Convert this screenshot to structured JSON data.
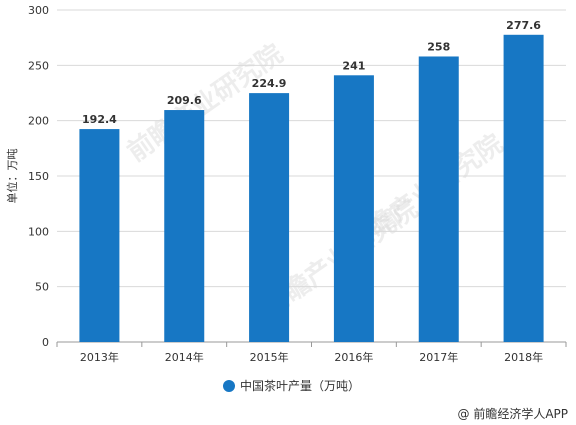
{
  "chart_data": {
    "type": "bar",
    "categories": [
      "2013年",
      "2014年",
      "2015年",
      "2016年",
      "2017年",
      "2018年"
    ],
    "series": [
      {
        "name": "中国茶叶产量（万吨）",
        "values": [
          192.4,
          209.6,
          224.9,
          241,
          258,
          277.6
        ],
        "labels": [
          "192.4",
          "209.6",
          "224.9",
          "241",
          "258",
          "277.6"
        ]
      }
    ],
    "ylabel": "单位：万吨",
    "ylim": [
      0,
      300
    ],
    "yticks": [
      0,
      50,
      100,
      150,
      200,
      250,
      300
    ],
    "grid": true,
    "legend": "bottom-center",
    "color": "#1777c4"
  },
  "credit": "@ 前瞻经济学人APP",
  "watermark": "前瞻产业研究院"
}
